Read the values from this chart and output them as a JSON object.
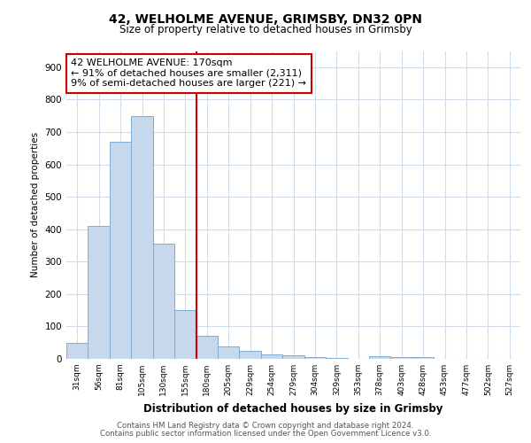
{
  "title1": "42, WELHOLME AVENUE, GRIMSBY, DN32 0PN",
  "title2": "Size of property relative to detached houses in Grimsby",
  "xlabel": "Distribution of detached houses by size in Grimsby",
  "ylabel": "Number of detached properties",
  "bar_color": "#c8d8ec",
  "bar_edge_color": "#7bafd4",
  "vline_color": "#cc0000",
  "vline_x": 5.5,
  "annotation_title": "42 WELHOLME AVENUE: 170sqm",
  "annotation_line1": "← 91% of detached houses are smaller (2,311)",
  "annotation_line2": "9% of semi-detached houses are larger (221) →",
  "footer1": "Contains HM Land Registry data © Crown copyright and database right 2024.",
  "footer2": "Contains public sector information licensed under the Open Government Licence v3.0.",
  "categories": [
    "31sqm",
    "56sqm",
    "81sqm",
    "105sqm",
    "130sqm",
    "155sqm",
    "180sqm",
    "205sqm",
    "229sqm",
    "254sqm",
    "279sqm",
    "304sqm",
    "329sqm",
    "353sqm",
    "378sqm",
    "403sqm",
    "428sqm",
    "453sqm",
    "477sqm",
    "502sqm",
    "527sqm"
  ],
  "values": [
    50,
    410,
    670,
    750,
    355,
    150,
    70,
    37,
    25,
    15,
    10,
    5,
    2,
    0,
    8,
    5,
    5,
    0,
    0,
    0,
    0
  ],
  "ylim": [
    0,
    950
  ],
  "yticks": [
    0,
    100,
    200,
    300,
    400,
    500,
    600,
    700,
    800,
    900
  ],
  "background_color": "#ffffff",
  "plot_background": "#ffffff",
  "grid_color": "#d0dce8"
}
